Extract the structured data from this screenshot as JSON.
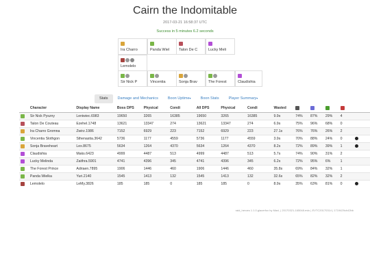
{
  "header": {
    "title": "Cairn the Indomitable",
    "date": "2017-03-21 16:58:37 UTC",
    "status": "Success in 5 minutes 6.2 seconds"
  },
  "tiles": [
    {
      "name": "Ira Charro",
      "icons": [
        "#d9a53b"
      ]
    },
    {
      "name": "Panda Wiel",
      "icons": [
        "#7ab648"
      ]
    },
    {
      "name": "Talon De C",
      "icons": [
        "#b8505b"
      ]
    },
    {
      "name": "Lucky Meli",
      "icons": [
        "#b34fd6"
      ]
    },
    {
      "name": "Lemolelo",
      "icons": [
        "#a5433f",
        "#999999",
        "#888888"
      ]
    },
    {
      "name": "Sir Nick P",
      "icons": [
        "#7ab648",
        "#999999"
      ]
    },
    {
      "name": "Vincentia",
      "icons": [
        "#7ab648",
        "#999999"
      ]
    },
    {
      "name": "Sonja Brav",
      "icons": [
        "#d9a53b",
        "#999999"
      ]
    },
    {
      "name": "The Forest",
      "icons": [
        "#7ab648",
        "#999999"
      ]
    },
    {
      "name": "Claudishia",
      "icons": [
        "#b34fd6"
      ]
    }
  ],
  "tabs": [
    {
      "label": "Stats",
      "active": true,
      "caret": ""
    },
    {
      "label": "Damage and Mechanics",
      "active": false,
      "caret": ""
    },
    {
      "label": "Boon Uptime",
      "active": false,
      "caret": "▾"
    },
    {
      "label": "Boon Stats",
      "active": false,
      "caret": ""
    },
    {
      "label": "Player Summary",
      "active": false,
      "caret": "▾"
    }
  ],
  "table": {
    "columns": [
      "Character",
      "Display Name",
      "Boss DPS",
      "Physical",
      "Condi",
      "All DPS",
      "Physical",
      "Condi",
      "Wasted"
    ],
    "icon_columns": [
      "#555555",
      "#6b6bd6",
      "#4a9d2e",
      "#c43a3a"
    ],
    "rows": [
      {
        "prof": "#7ab648",
        "cells": [
          "Sir Nick Pyszny",
          "Leniwiec.6983",
          "19650",
          "3265",
          "16385",
          "19650",
          "3265",
          "16385",
          "9.9s",
          "74%",
          "87%",
          "29%",
          "4"
        ],
        "dot": false
      },
      {
        "prof": "#b8505b",
        "cells": [
          "Talon De Couteau",
          "Ezehel.1748",
          "13621",
          "13347",
          "274",
          "13621",
          "13347",
          "274",
          "6.9s",
          "75%",
          "96%",
          "68%",
          "0"
        ],
        "dot": false
      },
      {
        "prof": "#d9a53b",
        "cells": [
          "Ira Charro Gromna",
          "Zwirz.1986",
          "7152",
          "6929",
          "223",
          "7152",
          "6929",
          "223",
          "27.1s",
          "76%",
          "76%",
          "26%",
          "2"
        ],
        "dot": false
      },
      {
        "prof": "#7ab648",
        "cells": [
          "Vincentia Slothgon",
          "Sthenastia.3642",
          "5736",
          "1177",
          "4559",
          "5736",
          "1177",
          "4559",
          "3.9s",
          "70%",
          "88%",
          "24%",
          "0"
        ],
        "dot": true
      },
      {
        "prof": "#d9a53b",
        "cells": [
          "Sonja Braveheart",
          "Lex.8675",
          "5634",
          "1264",
          "4370",
          "5634",
          "1264",
          "4370",
          "8.2s",
          "72%",
          "89%",
          "39%",
          "1"
        ],
        "dot": true
      },
      {
        "prof": "#b34fd6",
        "cells": [
          "Claudishia",
          "Maks.6423",
          "4999",
          "4487",
          "513",
          "4999",
          "4487",
          "513",
          "5.7s",
          "74%",
          "90%",
          "31%",
          "2"
        ],
        "dot": false
      },
      {
        "prof": "#b34fd6",
        "cells": [
          "Lucky Melinda",
          "Zaithra.5901",
          "4741",
          "4396",
          "345",
          "4741",
          "4396",
          "345",
          "6.2s",
          "72%",
          "95%",
          "6%",
          "1"
        ],
        "dot": false
      },
      {
        "prof": "#7ab648",
        "cells": [
          "The Forest Prince",
          "Adriaen.7895",
          "1906",
          "1446",
          "460",
          "1906",
          "1446",
          "460",
          "35.8s",
          "69%",
          "84%",
          "32%",
          "1"
        ],
        "dot": false
      },
      {
        "prof": "#7ab648",
        "cells": [
          "Panda Wielka",
          "Yuri.2140",
          "1545",
          "1413",
          "132",
          "1545",
          "1413",
          "132",
          "32.6s",
          "65%",
          "82%",
          "32%",
          "2"
        ],
        "dot": false
      },
      {
        "prof": "#a5433f",
        "cells": [
          "Lemolelo",
          "LeMy.3826",
          "185",
          "185",
          "0",
          "185",
          "185",
          "0",
          "8.9s",
          "35%",
          "63%",
          "81%",
          "0"
        ],
        "dot": true
      }
    ]
  },
  "footer": "raid_heroes 1.1.0.glacerfox by Maxi, | 20170321-165048.evtc | EVTC20170314 | 1719429ch42bb"
}
